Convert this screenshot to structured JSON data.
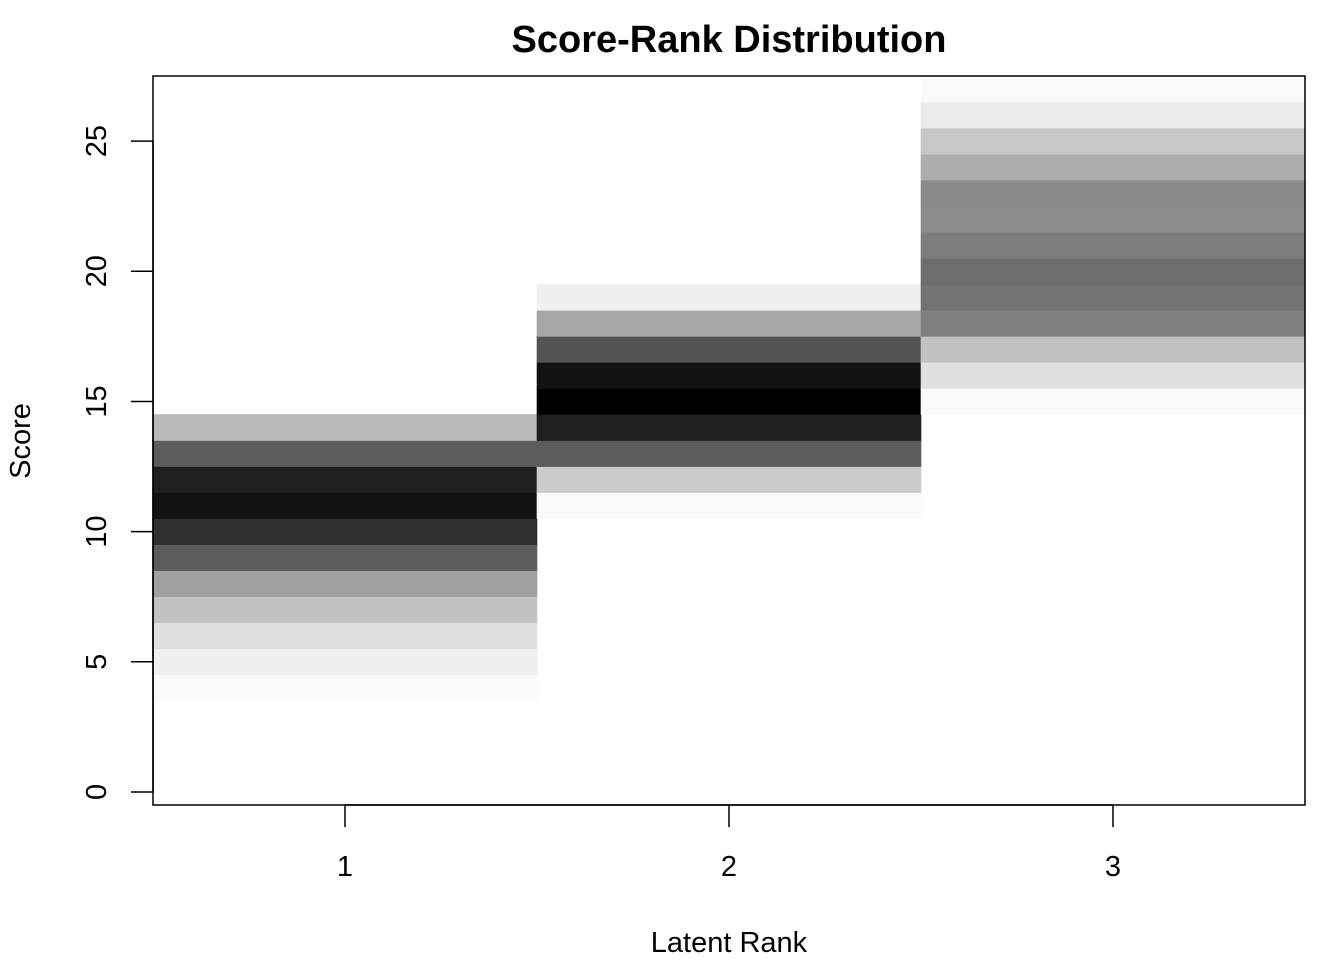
{
  "chart_data": {
    "type": "heatmap",
    "title": "Score-Rank Distribution",
    "xlabel": "Latent Rank",
    "ylabel": "Score",
    "x_categories": [
      "1",
      "2",
      "3"
    ],
    "y_ticks": [
      "0",
      "5",
      "10",
      "15",
      "20",
      "25"
    ],
    "xlim": [
      0.5,
      3.5
    ],
    "ylim": [
      -0.5,
      27.5
    ],
    "grid": false,
    "legend": "none",
    "color_scale": {
      "low": "#ffffff",
      "high": "#000000"
    },
    "cells": [
      {
        "rank": 1,
        "score": 4,
        "intensity": 0.02
      },
      {
        "rank": 1,
        "score": 5,
        "intensity": 0.06
      },
      {
        "rank": 1,
        "score": 6,
        "intensity": 0.12
      },
      {
        "rank": 1,
        "score": 7,
        "intensity": 0.24
      },
      {
        "rank": 1,
        "score": 8,
        "intensity": 0.37
      },
      {
        "rank": 1,
        "score": 9,
        "intensity": 0.64
      },
      {
        "rank": 1,
        "score": 10,
        "intensity": 0.81
      },
      {
        "rank": 1,
        "score": 11,
        "intensity": 0.93
      },
      {
        "rank": 1,
        "score": 12,
        "intensity": 0.88
      },
      {
        "rank": 1,
        "score": 13,
        "intensity": 0.64
      },
      {
        "rank": 1,
        "score": 14,
        "intensity": 0.27
      },
      {
        "rank": 2,
        "score": 11,
        "intensity": 0.02
      },
      {
        "rank": 2,
        "score": 12,
        "intensity": 0.2
      },
      {
        "rank": 2,
        "score": 13,
        "intensity": 0.64
      },
      {
        "rank": 2,
        "score": 14,
        "intensity": 0.88
      },
      {
        "rank": 2,
        "score": 15,
        "intensity": 1.0
      },
      {
        "rank": 2,
        "score": 16,
        "intensity": 0.93
      },
      {
        "rank": 2,
        "score": 17,
        "intensity": 0.67
      },
      {
        "rank": 2,
        "score": 18,
        "intensity": 0.35
      },
      {
        "rank": 2,
        "score": 19,
        "intensity": 0.06
      },
      {
        "rank": 3,
        "score": 15,
        "intensity": 0.02
      },
      {
        "rank": 3,
        "score": 16,
        "intensity": 0.12
      },
      {
        "rank": 3,
        "score": 17,
        "intensity": 0.24
      },
      {
        "rank": 3,
        "score": 18,
        "intensity": 0.5
      },
      {
        "rank": 3,
        "score": 19,
        "intensity": 0.55
      },
      {
        "rank": 3,
        "score": 20,
        "intensity": 0.57
      },
      {
        "rank": 3,
        "score": 21,
        "intensity": 0.51
      },
      {
        "rank": 3,
        "score": 22,
        "intensity": 0.45
      },
      {
        "rank": 3,
        "score": 23,
        "intensity": 0.46
      },
      {
        "rank": 3,
        "score": 24,
        "intensity": 0.32
      },
      {
        "rank": 3,
        "score": 25,
        "intensity": 0.22
      },
      {
        "rank": 3,
        "score": 26,
        "intensity": 0.08
      },
      {
        "rank": 3,
        "score": 27,
        "intensity": 0.02
      }
    ]
  }
}
